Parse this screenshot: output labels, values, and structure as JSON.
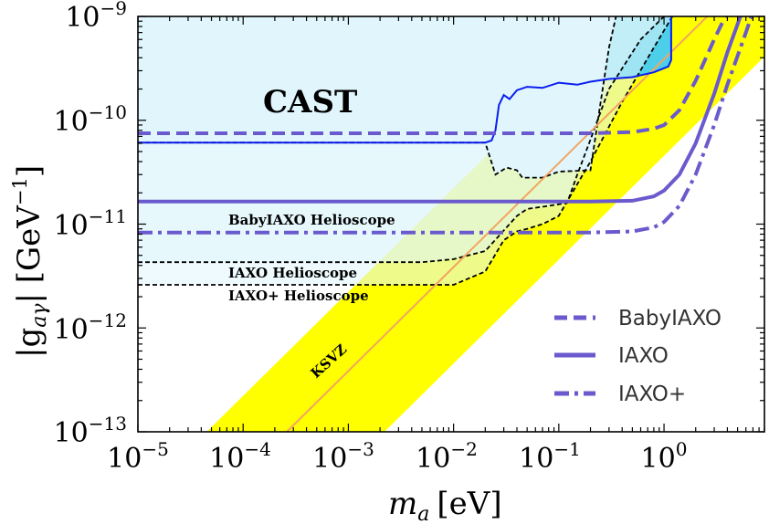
{
  "chart_data": {
    "type": "line",
    "x_scale": "log",
    "y_scale": "log",
    "xlim": [
      1e-05,
      9
    ],
    "ylim": [
      1e-13,
      1e-09
    ],
    "xlabel_main": "m",
    "xlabel_sub": "a",
    "xlabel_unit": "[eV]",
    "ylabel_main": "|g",
    "ylabel_sub": "aγ",
    "ylabel_unit_open": "| [GeV",
    "ylabel_unit_exp": "−1",
    "ylabel_unit_close": "]",
    "x_ticks": [
      {
        "base": "10",
        "exp": "−5",
        "value": 1e-05
      },
      {
        "base": "10",
        "exp": "−4",
        "value": 0.0001
      },
      {
        "base": "10",
        "exp": "−3",
        "value": 0.001
      },
      {
        "base": "10",
        "exp": "−2",
        "value": 0.01
      },
      {
        "base": "10",
        "exp": "−1",
        "value": 0.1
      },
      {
        "base": "10",
        "exp": "0",
        "value": 1
      }
    ],
    "y_ticks": [
      {
        "base": "10",
        "exp": "−13",
        "value": 1e-13
      },
      {
        "base": "10",
        "exp": "−12",
        "value": 1e-12
      },
      {
        "base": "10",
        "exp": "−11",
        "value": 1e-11
      },
      {
        "base": "10",
        "exp": "−10",
        "value": 1e-10
      },
      {
        "base": "10",
        "exp": "−9",
        "value": 1e-09
      }
    ],
    "qcd_band": {
      "color": "#ffff00",
      "lower": [
        [
          0.0022,
          1e-13
        ],
        [
          9,
          4.1e-10
        ]
      ],
      "upper": [
        [
          4.5e-05,
          1e-13
        ],
        [
          9,
          2e-08
        ]
      ]
    },
    "ksvz_line": {
      "label": "KSVZ",
      "color": "#f4a460",
      "points": [
        [
          0.00026,
          1e-13
        ],
        [
          9,
          3.5e-09
        ]
      ]
    },
    "cast": {
      "label": "CAST",
      "fill_color": "#44ccf5",
      "line_color": "#0a1ef0",
      "label_color": "#1a2fd0",
      "points": [
        [
          1e-05,
          6.1e-11
        ],
        [
          0.02,
          6.1e-11
        ],
        [
          0.023,
          6.4e-11
        ],
        [
          0.025,
          8e-11
        ],
        [
          0.027,
          1.4e-10
        ],
        [
          0.03,
          1.75e-10
        ],
        [
          0.034,
          1.6e-10
        ],
        [
          0.04,
          1.95e-10
        ],
        [
          0.05,
          2.1e-10
        ],
        [
          0.07,
          2.05e-10
        ],
        [
          0.1,
          2.3e-10
        ],
        [
          0.15,
          2.2e-10
        ],
        [
          0.2,
          2.35e-10
        ],
        [
          0.3,
          2.5e-10
        ],
        [
          0.5,
          2.6e-10
        ],
        [
          0.8,
          2.9e-10
        ],
        [
          1.1,
          3.3e-10
        ],
        [
          1.17,
          3.8e-10
        ],
        [
          1.17,
          1e-09
        ]
      ]
    },
    "helioscope_regions": {
      "fill_color": "#e0f5fc",
      "regions": [
        {
          "label": "BabyIAXO Helioscope",
          "points": [
            [
              1e-05,
              6.1e-11
            ],
            [
              0.02,
              6.1e-11
            ],
            [
              0.025,
              3e-11
            ],
            [
              0.032,
              3.5e-11
            ],
            [
              0.04,
              3.3e-11
            ],
            [
              0.045,
              2.8e-11
            ],
            [
              0.07,
              2.8e-11
            ],
            [
              0.1,
              3.2e-11
            ],
            [
              0.2,
              3.3e-11
            ],
            [
              0.25,
              1.5e-10
            ],
            [
              0.3,
              5e-10
            ],
            [
              0.35,
              1e-09
            ]
          ]
        },
        {
          "label": "IAXO Helioscope",
          "points": [
            [
              1e-05,
              4.3e-12
            ],
            [
              0.005,
              4.3e-12
            ],
            [
              0.01,
              4.6e-12
            ],
            [
              0.02,
              5.5e-12
            ],
            [
              0.04,
              1.2e-11
            ],
            [
              0.05,
              1.4e-11
            ],
            [
              0.08,
              1.5e-11
            ],
            [
              0.12,
              1.6e-11
            ],
            [
              0.15,
              3e-11
            ],
            [
              0.2,
              6.5e-11
            ],
            [
              0.3,
              2e-10
            ],
            [
              0.6,
              6e-10
            ],
            [
              1,
              1e-09
            ]
          ]
        },
        {
          "label": "IAXO+ Helioscope",
          "points": [
            [
              1e-05,
              2.6e-12
            ],
            [
              0.01,
              2.6e-12
            ],
            [
              0.02,
              3.5e-12
            ],
            [
              0.03,
              7e-12
            ],
            [
              0.04,
              8.5e-12
            ],
            [
              0.05,
              9e-12
            ],
            [
              0.07,
              1e-11
            ],
            [
              0.1,
              1.2e-11
            ],
            [
              0.2,
              4e-11
            ],
            [
              0.4,
              1.5e-10
            ],
            [
              0.8,
              5e-10
            ],
            [
              1.2,
              1e-09
            ]
          ]
        }
      ]
    },
    "series": [
      {
        "name": "BabyIAXO",
        "style": "dashed",
        "color": "#6a5acd",
        "points": [
          [
            1e-05,
            7.5e-11
          ],
          [
            0.2,
            7.5e-11
          ],
          [
            0.5,
            7.7e-11
          ],
          [
            0.8,
            8.3e-11
          ],
          [
            1,
            9e-11
          ],
          [
            1.4,
            1.25e-10
          ],
          [
            2,
            2.4e-10
          ],
          [
            3,
            6e-10
          ],
          [
            4,
            1.1e-09
          ]
        ]
      },
      {
        "name": "IAXO",
        "style": "solid",
        "color": "#6a5acd",
        "points": [
          [
            1e-05,
            1.65e-11
          ],
          [
            0.2,
            1.65e-11
          ],
          [
            0.5,
            1.68e-11
          ],
          [
            0.8,
            1.85e-11
          ],
          [
            1,
            2.1e-11
          ],
          [
            1.4,
            3e-11
          ],
          [
            2,
            6e-11
          ],
          [
            3,
            1.8e-10
          ],
          [
            4,
            4.5e-10
          ],
          [
            5.5,
            1.1e-09
          ]
        ]
      },
      {
        "name": "IAXO+",
        "style": "dashdot",
        "color": "#6a5acd",
        "points": [
          [
            1e-05,
            8.3e-12
          ],
          [
            0.2,
            8.3e-12
          ],
          [
            0.5,
            8.5e-12
          ],
          [
            0.8,
            9.3e-12
          ],
          [
            1,
            1.05e-11
          ],
          [
            1.4,
            1.5e-11
          ],
          [
            2,
            3e-11
          ],
          [
            3,
            9e-11
          ],
          [
            4,
            2.2e-10
          ],
          [
            6,
            7e-10
          ],
          [
            7,
            1.1e-09
          ]
        ]
      }
    ],
    "legend_position": "lower-right"
  }
}
